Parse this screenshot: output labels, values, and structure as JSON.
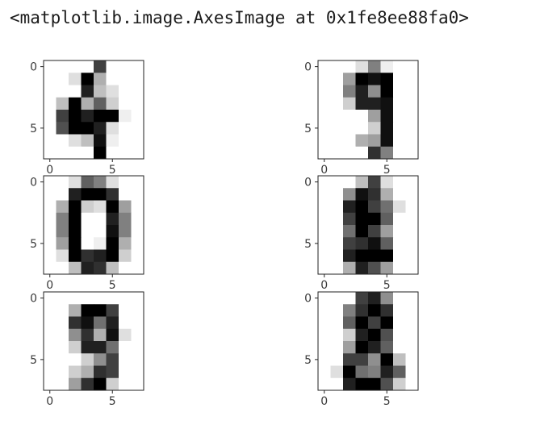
{
  "output": {
    "text": "<matplotlib.image.AxesImage at 0x1fe8ee88fa0>"
  },
  "chart_data": [
    {
      "type": "heatmap",
      "colormap": "gray_r",
      "shape": [
        8,
        8
      ],
      "xticks": [
        0,
        5
      ],
      "yticks": [
        0,
        5
      ],
      "values": [
        [
          0,
          0,
          0,
          0,
          12,
          0,
          0,
          0
        ],
        [
          0,
          0,
          2,
          16,
          5,
          0,
          0,
          0
        ],
        [
          0,
          0,
          0,
          14,
          4,
          2,
          0,
          0
        ],
        [
          0,
          4,
          16,
          5,
          10,
          3,
          0,
          0
        ],
        [
          0,
          12,
          16,
          14,
          16,
          16,
          1,
          0
        ],
        [
          0,
          11,
          16,
          16,
          14,
          2,
          0,
          0
        ],
        [
          0,
          0,
          2,
          4,
          15,
          1,
          0,
          0
        ],
        [
          0,
          0,
          0,
          0,
          16,
          0,
          0,
          0
        ]
      ]
    },
    {
      "type": "heatmap",
      "colormap": "gray_r",
      "shape": [
        8,
        8
      ],
      "xticks": [
        0,
        5
      ],
      "yticks": [
        0,
        5
      ],
      "values": [
        [
          0,
          0,
          0,
          2,
          8,
          1,
          0,
          0
        ],
        [
          0,
          0,
          6,
          16,
          15,
          16,
          0,
          0
        ],
        [
          0,
          0,
          8,
          14,
          7,
          16,
          0,
          0
        ],
        [
          0,
          0,
          3,
          14,
          14,
          15,
          0,
          0
        ],
        [
          0,
          0,
          0,
          0,
          6,
          15,
          0,
          0
        ],
        [
          0,
          0,
          0,
          0,
          3,
          15,
          0,
          0
        ],
        [
          0,
          0,
          0,
          5,
          6,
          15,
          0,
          0
        ],
        [
          0,
          0,
          0,
          0,
          13,
          8,
          0,
          0
        ]
      ]
    },
    {
      "type": "heatmap",
      "colormap": "gray_r",
      "shape": [
        8,
        8
      ],
      "xticks": [
        0,
        5
      ],
      "yticks": [
        0,
        5
      ],
      "values": [
        [
          0,
          0,
          2,
          10,
          8,
          2,
          0,
          0
        ],
        [
          0,
          0,
          14,
          16,
          16,
          13,
          0,
          0
        ],
        [
          0,
          5,
          16,
          3,
          2,
          16,
          6,
          0
        ],
        [
          0,
          8,
          16,
          0,
          0,
          14,
          8,
          0
        ],
        [
          0,
          8,
          16,
          0,
          0,
          15,
          8,
          0
        ],
        [
          0,
          6,
          16,
          0,
          1,
          16,
          5,
          0
        ],
        [
          0,
          2,
          16,
          13,
          14,
          16,
          3,
          0
        ],
        [
          0,
          0,
          4,
          14,
          13,
          4,
          0,
          0
        ]
      ]
    },
    {
      "type": "heatmap",
      "colormap": "gray_r",
      "shape": [
        8,
        8
      ],
      "xticks": [
        0,
        5
      ],
      "yticks": [
        0,
        5
      ],
      "values": [
        [
          0,
          0,
          0,
          4,
          12,
          2,
          0,
          0
        ],
        [
          0,
          0,
          7,
          15,
          13,
          5,
          0,
          0
        ],
        [
          0,
          0,
          14,
          16,
          12,
          9,
          2,
          0
        ],
        [
          0,
          0,
          12,
          16,
          16,
          10,
          0,
          0
        ],
        [
          0,
          0,
          9,
          16,
          12,
          6,
          0,
          0
        ],
        [
          0,
          0,
          12,
          13,
          15,
          10,
          0,
          0
        ],
        [
          0,
          0,
          14,
          16,
          16,
          16,
          0,
          0
        ],
        [
          0,
          0,
          5,
          14,
          11,
          6,
          0,
          0
        ]
      ]
    },
    {
      "type": "heatmap",
      "colormap": "gray_r",
      "shape": [
        8,
        8
      ],
      "xticks": [
        0,
        5
      ],
      "yticks": [
        0,
        5
      ],
      "values": [
        [
          0,
          0,
          0,
          0,
          0,
          0,
          0,
          0
        ],
        [
          0,
          0,
          5,
          16,
          16,
          12,
          0,
          0
        ],
        [
          0,
          0,
          13,
          15,
          9,
          14,
          0,
          0
        ],
        [
          0,
          0,
          7,
          13,
          5,
          15,
          2,
          0
        ],
        [
          0,
          0,
          3,
          14,
          14,
          9,
          0,
          0
        ],
        [
          0,
          0,
          0,
          3,
          7,
          12,
          0,
          0
        ],
        [
          0,
          0,
          3,
          5,
          13,
          12,
          0,
          0
        ],
        [
          0,
          0,
          6,
          13,
          16,
          3,
          0,
          0
        ]
      ]
    },
    {
      "type": "heatmap",
      "colormap": "gray_r",
      "shape": [
        8,
        8
      ],
      "xticks": [
        0,
        5
      ],
      "yticks": [
        0,
        5
      ],
      "values": [
        [
          0,
          0,
          0,
          12,
          14,
          7,
          0,
          0
        ],
        [
          0,
          0,
          8,
          13,
          16,
          13,
          0,
          0
        ],
        [
          0,
          0,
          10,
          16,
          12,
          16,
          0,
          0
        ],
        [
          0,
          0,
          3,
          14,
          16,
          11,
          0,
          0
        ],
        [
          0,
          0,
          6,
          16,
          14,
          10,
          0,
          0
        ],
        [
          0,
          0,
          12,
          12,
          7,
          16,
          4,
          0
        ],
        [
          0,
          2,
          16,
          9,
          8,
          14,
          10,
          0
        ],
        [
          0,
          0,
          14,
          16,
          16,
          11,
          3,
          0
        ]
      ]
    }
  ]
}
